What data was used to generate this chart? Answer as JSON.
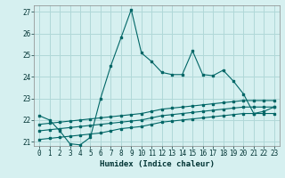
{
  "title": "",
  "xlabel": "Humidex (Indice chaleur)",
  "ylabel": "",
  "bg_color": "#d6f0f0",
  "grid_color": "#b0d8d8",
  "line_color": "#006666",
  "xlim": [
    -0.5,
    23.5
  ],
  "ylim": [
    20.8,
    27.3
  ],
  "yticks": [
    21,
    22,
    23,
    24,
    25,
    26,
    27
  ],
  "xticks": [
    0,
    1,
    2,
    3,
    4,
    5,
    6,
    7,
    8,
    9,
    10,
    11,
    12,
    13,
    14,
    15,
    16,
    17,
    18,
    19,
    20,
    21,
    22,
    23
  ],
  "series1_x": [
    0,
    1,
    2,
    3,
    4,
    5,
    6,
    7,
    8,
    9,
    10,
    11,
    12,
    13,
    14,
    15,
    16,
    17,
    18,
    19,
    20,
    21,
    22,
    23
  ],
  "series1_y": [
    22.2,
    22.0,
    21.5,
    20.9,
    20.85,
    21.2,
    23.0,
    24.5,
    25.8,
    27.1,
    25.1,
    24.7,
    24.2,
    24.1,
    24.1,
    25.2,
    24.1,
    24.05,
    24.3,
    23.8,
    23.2,
    22.3,
    22.4,
    22.6
  ],
  "series2_x": [
    0,
    1,
    2,
    3,
    4,
    5,
    6,
    7,
    8,
    9,
    10,
    11,
    12,
    13,
    14,
    15,
    16,
    17,
    18,
    19,
    20,
    21,
    22,
    23
  ],
  "series2_y": [
    21.8,
    21.85,
    21.9,
    21.95,
    22.0,
    22.05,
    22.1,
    22.15,
    22.2,
    22.25,
    22.3,
    22.4,
    22.5,
    22.55,
    22.6,
    22.65,
    22.7,
    22.75,
    22.8,
    22.85,
    22.9,
    22.9,
    22.9,
    22.9
  ],
  "series3_x": [
    0,
    1,
    2,
    3,
    4,
    5,
    6,
    7,
    8,
    9,
    10,
    11,
    12,
    13,
    14,
    15,
    16,
    17,
    18,
    19,
    20,
    21,
    22,
    23
  ],
  "series3_y": [
    21.5,
    21.55,
    21.6,
    21.65,
    21.7,
    21.75,
    21.8,
    21.85,
    21.9,
    21.95,
    22.0,
    22.1,
    22.2,
    22.25,
    22.3,
    22.35,
    22.4,
    22.45,
    22.5,
    22.55,
    22.6,
    22.6,
    22.6,
    22.6
  ],
  "series4_x": [
    0,
    1,
    2,
    3,
    4,
    5,
    6,
    7,
    8,
    9,
    10,
    11,
    12,
    13,
    14,
    15,
    16,
    17,
    18,
    19,
    20,
    21,
    22,
    23
  ],
  "series4_y": [
    21.1,
    21.15,
    21.2,
    21.25,
    21.3,
    21.35,
    21.4,
    21.5,
    21.6,
    21.65,
    21.7,
    21.8,
    21.9,
    21.95,
    22.0,
    22.05,
    22.1,
    22.15,
    22.2,
    22.25,
    22.3,
    22.3,
    22.3,
    22.3
  ]
}
